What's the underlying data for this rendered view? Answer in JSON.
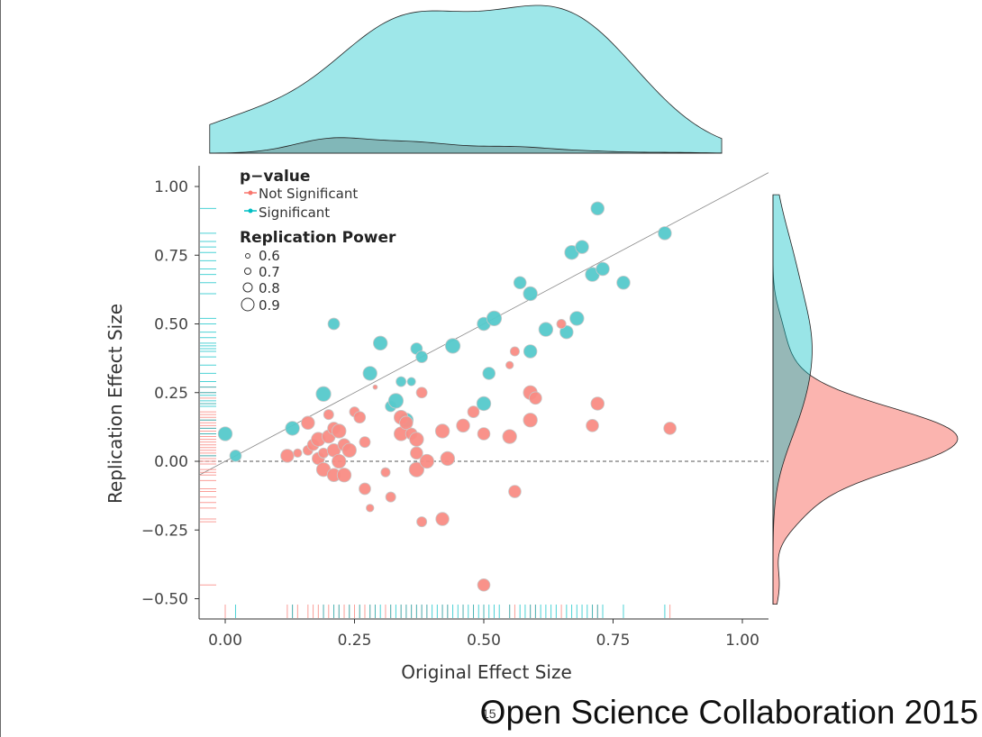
{
  "credit": "Open Science Collaboration 2015",
  "page_number": "15",
  "colors": {
    "not_significant": "#F8766D",
    "significant": "#00BFC4",
    "point_ns": "#F98C84",
    "point_s": "#55C9CB"
  },
  "chart_data": {
    "type": "scatter",
    "xlabel": "Original Effect Size",
    "ylabel": "Replication Effect Size",
    "xlim": [
      -0.06,
      1.05
    ],
    "ylim": [
      -0.57,
      1.07
    ],
    "xticks": [
      "0.00",
      "0.25",
      "0.50",
      "0.75",
      "1.00"
    ],
    "yticks": [
      "1.00",
      "0.75",
      "0.50",
      "0.25",
      "0.00",
      "−0.25",
      "−0.50"
    ],
    "reference_lines": {
      "diagonal": "y = x",
      "horizontal_dashed": "y = 0"
    },
    "legend": {
      "color_title": "p−value",
      "color_entries": [
        "Not Significant",
        "Significant"
      ],
      "size_title": "Replication Power",
      "size_entries": [
        "0.6",
        "0.7",
        "0.8",
        "0.9"
      ]
    },
    "marginals": "density (top: original effect size, right: replication effect size) and rug plots",
    "series": [
      {
        "name": "Significant",
        "points": [
          [
            0.0,
            0.1,
            0.84
          ],
          [
            0.02,
            0.02,
            0.78
          ],
          [
            0.13,
            0.12,
            0.84
          ],
          [
            0.19,
            0.245,
            0.86
          ],
          [
            0.21,
            0.5,
            0.78
          ],
          [
            0.28,
            0.32,
            0.84
          ],
          [
            0.3,
            0.43,
            0.84
          ],
          [
            0.32,
            0.2,
            0.76
          ],
          [
            0.33,
            0.22,
            0.86
          ],
          [
            0.34,
            0.29,
            0.74
          ],
          [
            0.35,
            0.15,
            0.84
          ],
          [
            0.36,
            0.29,
            0.7
          ],
          [
            0.37,
            0.41,
            0.78
          ],
          [
            0.38,
            0.38,
            0.78
          ],
          [
            0.44,
            0.42,
            0.86
          ],
          [
            0.5,
            0.21,
            0.84
          ],
          [
            0.5,
            0.5,
            0.82
          ],
          [
            0.51,
            0.32,
            0.8
          ],
          [
            0.52,
            0.52,
            0.86
          ],
          [
            0.57,
            0.65,
            0.8
          ],
          [
            0.59,
            0.61,
            0.84
          ],
          [
            0.59,
            0.4,
            0.82
          ],
          [
            0.62,
            0.48,
            0.84
          ],
          [
            0.66,
            0.47,
            0.82
          ],
          [
            0.67,
            0.76,
            0.84
          ],
          [
            0.68,
            0.52,
            0.84
          ],
          [
            0.69,
            0.78,
            0.82
          ],
          [
            0.71,
            0.68,
            0.84
          ],
          [
            0.72,
            0.92,
            0.82
          ],
          [
            0.73,
            0.7,
            0.82
          ],
          [
            0.77,
            0.65,
            0.82
          ],
          [
            0.85,
            0.83,
            0.82
          ]
        ]
      },
      {
        "name": "Not Significant",
        "points": [
          [
            0.12,
            0.02,
            0.82
          ],
          [
            0.14,
            0.03,
            0.7
          ],
          [
            0.16,
            0.14,
            0.82
          ],
          [
            0.16,
            0.04,
            0.74
          ],
          [
            0.17,
            0.06,
            0.78
          ],
          [
            0.18,
            0.08,
            0.84
          ],
          [
            0.18,
            0.01,
            0.8
          ],
          [
            0.19,
            -0.03,
            0.84
          ],
          [
            0.19,
            0.03,
            0.74
          ],
          [
            0.2,
            0.17,
            0.74
          ],
          [
            0.2,
            0.09,
            0.82
          ],
          [
            0.21,
            0.04,
            0.82
          ],
          [
            0.21,
            0.12,
            0.8
          ],
          [
            0.21,
            -0.05,
            0.82
          ],
          [
            0.22,
            0.11,
            0.84
          ],
          [
            0.22,
            0.0,
            0.84
          ],
          [
            0.23,
            -0.05,
            0.84
          ],
          [
            0.23,
            0.06,
            0.8
          ],
          [
            0.24,
            0.04,
            0.84
          ],
          [
            0.25,
            0.18,
            0.74
          ],
          [
            0.26,
            0.16,
            0.78
          ],
          [
            0.27,
            0.07,
            0.76
          ],
          [
            0.27,
            -0.1,
            0.78
          ],
          [
            0.28,
            -0.17,
            0.68
          ],
          [
            0.29,
            0.27,
            0.6
          ],
          [
            0.31,
            -0.04,
            0.72
          ],
          [
            0.32,
            -0.13,
            0.74
          ],
          [
            0.34,
            0.16,
            0.84
          ],
          [
            0.34,
            0.1,
            0.84
          ],
          [
            0.35,
            0.14,
            0.82
          ],
          [
            0.36,
            0.1,
            0.78
          ],
          [
            0.37,
            0.08,
            0.84
          ],
          [
            0.37,
            0.03,
            0.8
          ],
          [
            0.37,
            -0.03,
            0.86
          ],
          [
            0.38,
            0.25,
            0.76
          ],
          [
            0.38,
            -0.22,
            0.74
          ],
          [
            0.39,
            0.0,
            0.84
          ],
          [
            0.42,
            0.11,
            0.84
          ],
          [
            0.42,
            -0.21,
            0.82
          ],
          [
            0.43,
            0.01,
            0.84
          ],
          [
            0.46,
            0.13,
            0.82
          ],
          [
            0.48,
            0.18,
            0.78
          ],
          [
            0.5,
            0.1,
            0.8
          ],
          [
            0.5,
            -0.45,
            0.8
          ],
          [
            0.55,
            0.35,
            0.68
          ],
          [
            0.55,
            0.09,
            0.84
          ],
          [
            0.56,
            0.4,
            0.72
          ],
          [
            0.56,
            -0.11,
            0.8
          ],
          [
            0.59,
            0.25,
            0.84
          ],
          [
            0.59,
            0.15,
            0.84
          ],
          [
            0.6,
            0.23,
            0.8
          ],
          [
            0.65,
            0.5,
            0.72
          ],
          [
            0.71,
            0.13,
            0.8
          ],
          [
            0.72,
            0.21,
            0.82
          ],
          [
            0.86,
            0.12,
            0.8
          ]
        ]
      }
    ],
    "rug_x": {
      "not_significant": [
        0.0,
        0.12,
        0.13,
        0.14,
        0.16,
        0.17,
        0.18,
        0.19,
        0.2,
        0.21,
        0.22,
        0.23,
        0.24,
        0.25,
        0.26,
        0.27,
        0.28,
        0.29,
        0.31,
        0.32,
        0.34,
        0.35,
        0.36,
        0.37,
        0.38,
        0.39,
        0.42,
        0.43,
        0.46,
        0.48,
        0.5,
        0.55,
        0.56,
        0.59,
        0.6,
        0.65,
        0.71,
        0.72,
        0.86
      ],
      "significant": [
        0.02,
        0.13,
        0.19,
        0.21,
        0.22,
        0.24,
        0.26,
        0.28,
        0.29,
        0.3,
        0.32,
        0.33,
        0.34,
        0.35,
        0.36,
        0.37,
        0.38,
        0.39,
        0.4,
        0.41,
        0.42,
        0.43,
        0.44,
        0.45,
        0.46,
        0.47,
        0.48,
        0.49,
        0.5,
        0.51,
        0.52,
        0.53,
        0.55,
        0.57,
        0.58,
        0.59,
        0.6,
        0.61,
        0.62,
        0.63,
        0.64,
        0.66,
        0.67,
        0.68,
        0.69,
        0.7,
        0.71,
        0.72,
        0.73,
        0.77,
        0.85
      ]
    },
    "rug_y": {
      "not_significant": [
        0.27,
        0.25,
        0.23,
        0.21,
        0.18,
        0.17,
        0.16,
        0.15,
        0.14,
        0.13,
        0.12,
        0.11,
        0.1,
        0.09,
        0.08,
        0.07,
        0.06,
        0.05,
        0.04,
        0.03,
        0.02,
        0.01,
        0.0,
        -0.01,
        -0.03,
        -0.04,
        -0.05,
        -0.07,
        -0.1,
        -0.11,
        -0.13,
        -0.15,
        -0.17,
        -0.21,
        -0.22,
        -0.45
      ],
      "significant": [
        0.92,
        0.83,
        0.8,
        0.78,
        0.76,
        0.73,
        0.7,
        0.68,
        0.65,
        0.61,
        0.52,
        0.5,
        0.47,
        0.45,
        0.43,
        0.42,
        0.41,
        0.4,
        0.38,
        0.35,
        0.32,
        0.29,
        0.27,
        0.25,
        0.24,
        0.22,
        0.21,
        0.2,
        0.15,
        0.12,
        0.1,
        0.02
      ]
    }
  }
}
